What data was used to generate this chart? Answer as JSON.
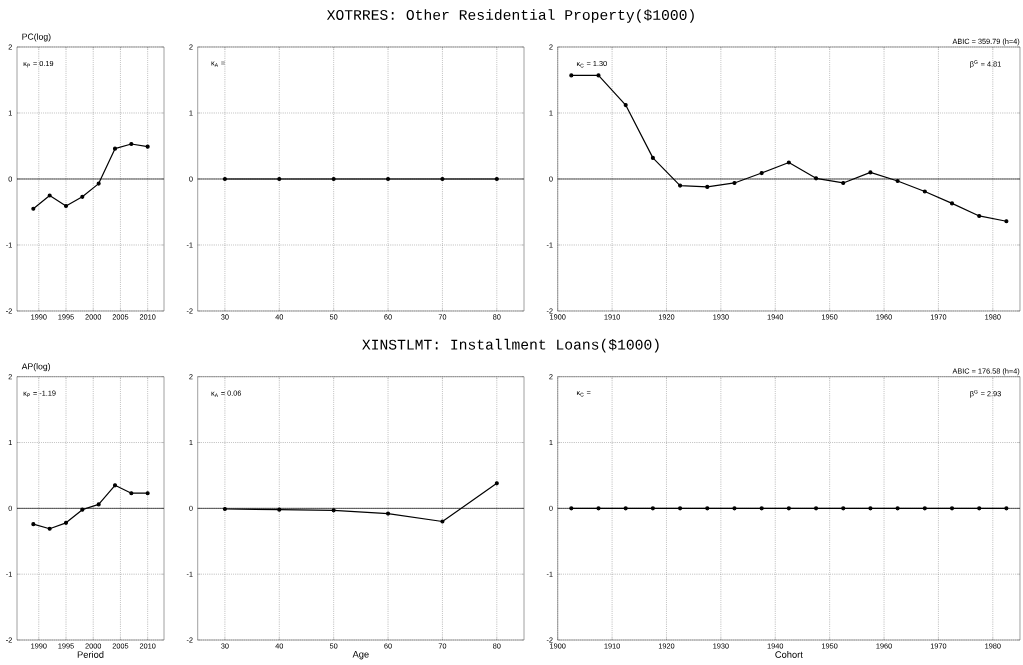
{
  "chart_data": [
    {
      "type": "line",
      "ylabel": "PC(log)",
      "annotations": [
        "κ$_{P}$ =  0.19"
      ],
      "x": [
        1989,
        1992,
        1995,
        1998,
        2001,
        2004,
        2007,
        2010
      ],
      "values": [
        -0.45,
        -0.25,
        -0.41,
        -0.27,
        -0.07,
        0.46,
        0.53,
        0.49
      ],
      "color": "#000000",
      "marker": "circle",
      "line_style": "solid",
      "xlim": [
        1986,
        2013
      ],
      "ylim": [
        -2,
        2
      ],
      "xticks": [
        1990,
        1995,
        2000,
        2005,
        2010
      ],
      "yticks": [
        -2,
        -1,
        0,
        1,
        2
      ],
      "grid": true,
      "ref_lines": [
        {
          "axis": "y",
          "value": 0,
          "color": "#000000"
        }
      ]
    },
    {
      "type": "line",
      "title": "XOTRRES: Other Residential Property($1000)",
      "annotations": [
        "κ$_{A}$ ="
      ],
      "x": [
        30,
        40,
        50,
        60,
        70,
        80
      ],
      "values": [
        0,
        0,
        0,
        0,
        0,
        0
      ],
      "color": "#000000",
      "marker": "circle",
      "line_style": "solid",
      "xlim": [
        25,
        85
      ],
      "ylim": [
        -2,
        2
      ],
      "xticks": [
        30,
        40,
        50,
        60,
        70,
        80
      ],
      "yticks": [
        -2,
        -1,
        0,
        1,
        2
      ],
      "grid": true,
      "ref_lines": [
        {
          "axis": "y",
          "value": 0,
          "color": "#000000"
        }
      ]
    },
    {
      "type": "line",
      "annotations": [
        "κ$_{C}$ =  1.30",
        "β$^{G}$ =  4.81",
        "ABIC = 359.79 (h=4)"
      ],
      "x": [
        1902.5,
        1907.5,
        1912.5,
        1917.5,
        1922.5,
        1927.5,
        1932.5,
        1937.5,
        1942.5,
        1947.5,
        1952.5,
        1957.5,
        1962.5,
        1967.5,
        1972.5,
        1977.5,
        1982.5
      ],
      "values": [
        1.57,
        1.57,
        1.12,
        0.32,
        -0.1,
        -0.12,
        -0.06,
        0.09,
        0.25,
        0.01,
        -0.06,
        0.1,
        -0.03,
        -0.19,
        -0.37,
        -0.56,
        -0.64
      ],
      "color": "#000000",
      "marker": "circle",
      "line_style": "solid",
      "xlim": [
        1900,
        1985
      ],
      "ylim": [
        -2,
        2
      ],
      "xticks": [
        1900,
        1910,
        1920,
        1930,
        1940,
        1950,
        1960,
        1970,
        1980
      ],
      "yticks": [
        -2,
        -1,
        0,
        1,
        2
      ],
      "grid": true,
      "ref_lines": [
        {
          "axis": "y",
          "value": 0,
          "color": "#000000"
        }
      ]
    },
    {
      "type": "line",
      "ylabel": "AP(log)",
      "xlabel": "Period",
      "annotations": [
        "κ$_{P}$ =  -1.19"
      ],
      "x": [
        1989,
        1992,
        1995,
        1998,
        2001,
        2004,
        2007,
        2010
      ],
      "values": [
        -0.24,
        -0.31,
        -0.22,
        -0.02,
        0.06,
        0.35,
        0.23,
        0.23
      ],
      "color": "#000000",
      "marker": "circle",
      "line_style": "solid",
      "xlim": [
        1986,
        2013
      ],
      "ylim": [
        -2,
        2
      ],
      "xticks": [
        1990,
        1995,
        2000,
        2005,
        2010
      ],
      "yticks": [
        -2,
        -1,
        0,
        1,
        2
      ],
      "grid": true,
      "ref_lines": [
        {
          "axis": "y",
          "value": 0,
          "color": "#000000"
        }
      ]
    },
    {
      "type": "line",
      "title": "XINSTLMT: Installment Loans($1000)",
      "xlabel": "Age",
      "annotations": [
        "κ$_{A}$ =  0.06"
      ],
      "x": [
        30,
        40,
        50,
        60,
        70,
        80
      ],
      "values": [
        -0.01,
        -0.02,
        -0.03,
        -0.08,
        -0.2,
        0.38
      ],
      "color": "#000000",
      "marker": "circle",
      "line_style": "solid",
      "xlim": [
        25,
        85
      ],
      "ylim": [
        -2,
        2
      ],
      "xticks": [
        30,
        40,
        50,
        60,
        70,
        80
      ],
      "yticks": [
        -2,
        -1,
        0,
        1,
        2
      ],
      "grid": true,
      "ref_lines": [
        {
          "axis": "y",
          "value": 0,
          "color": "#000000"
        }
      ]
    },
    {
      "type": "line",
      "xlabel": "Cohort",
      "annotations": [
        "κ$_{C}$ =",
        "β$^{G}$ =  2.93",
        "ABIC = 176.58 (h=4)"
      ],
      "x": [
        1902.5,
        1907.5,
        1912.5,
        1917.5,
        1922.5,
        1927.5,
        1932.5,
        1937.5,
        1942.5,
        1947.5,
        1952.5,
        1957.5,
        1962.5,
        1967.5,
        1972.5,
        1977.5,
        1982.5
      ],
      "values": [
        0,
        0,
        0,
        0,
        0,
        0,
        0,
        0,
        0,
        0,
        0,
        0,
        0,
        0,
        0,
        0,
        0
      ],
      "color": "#000000",
      "marker": "circle",
      "line_style": "solid",
      "xlim": [
        1900,
        1985
      ],
      "ylim": [
        -2,
        2
      ],
      "xticks": [
        1900,
        1910,
        1920,
        1930,
        1940,
        1950,
        1960,
        1970,
        1980
      ],
      "yticks": [
        -2,
        -1,
        0,
        1,
        2
      ],
      "grid": true,
      "ref_lines": [
        {
          "axis": "y",
          "value": 0,
          "color": "#000000"
        }
      ]
    }
  ]
}
